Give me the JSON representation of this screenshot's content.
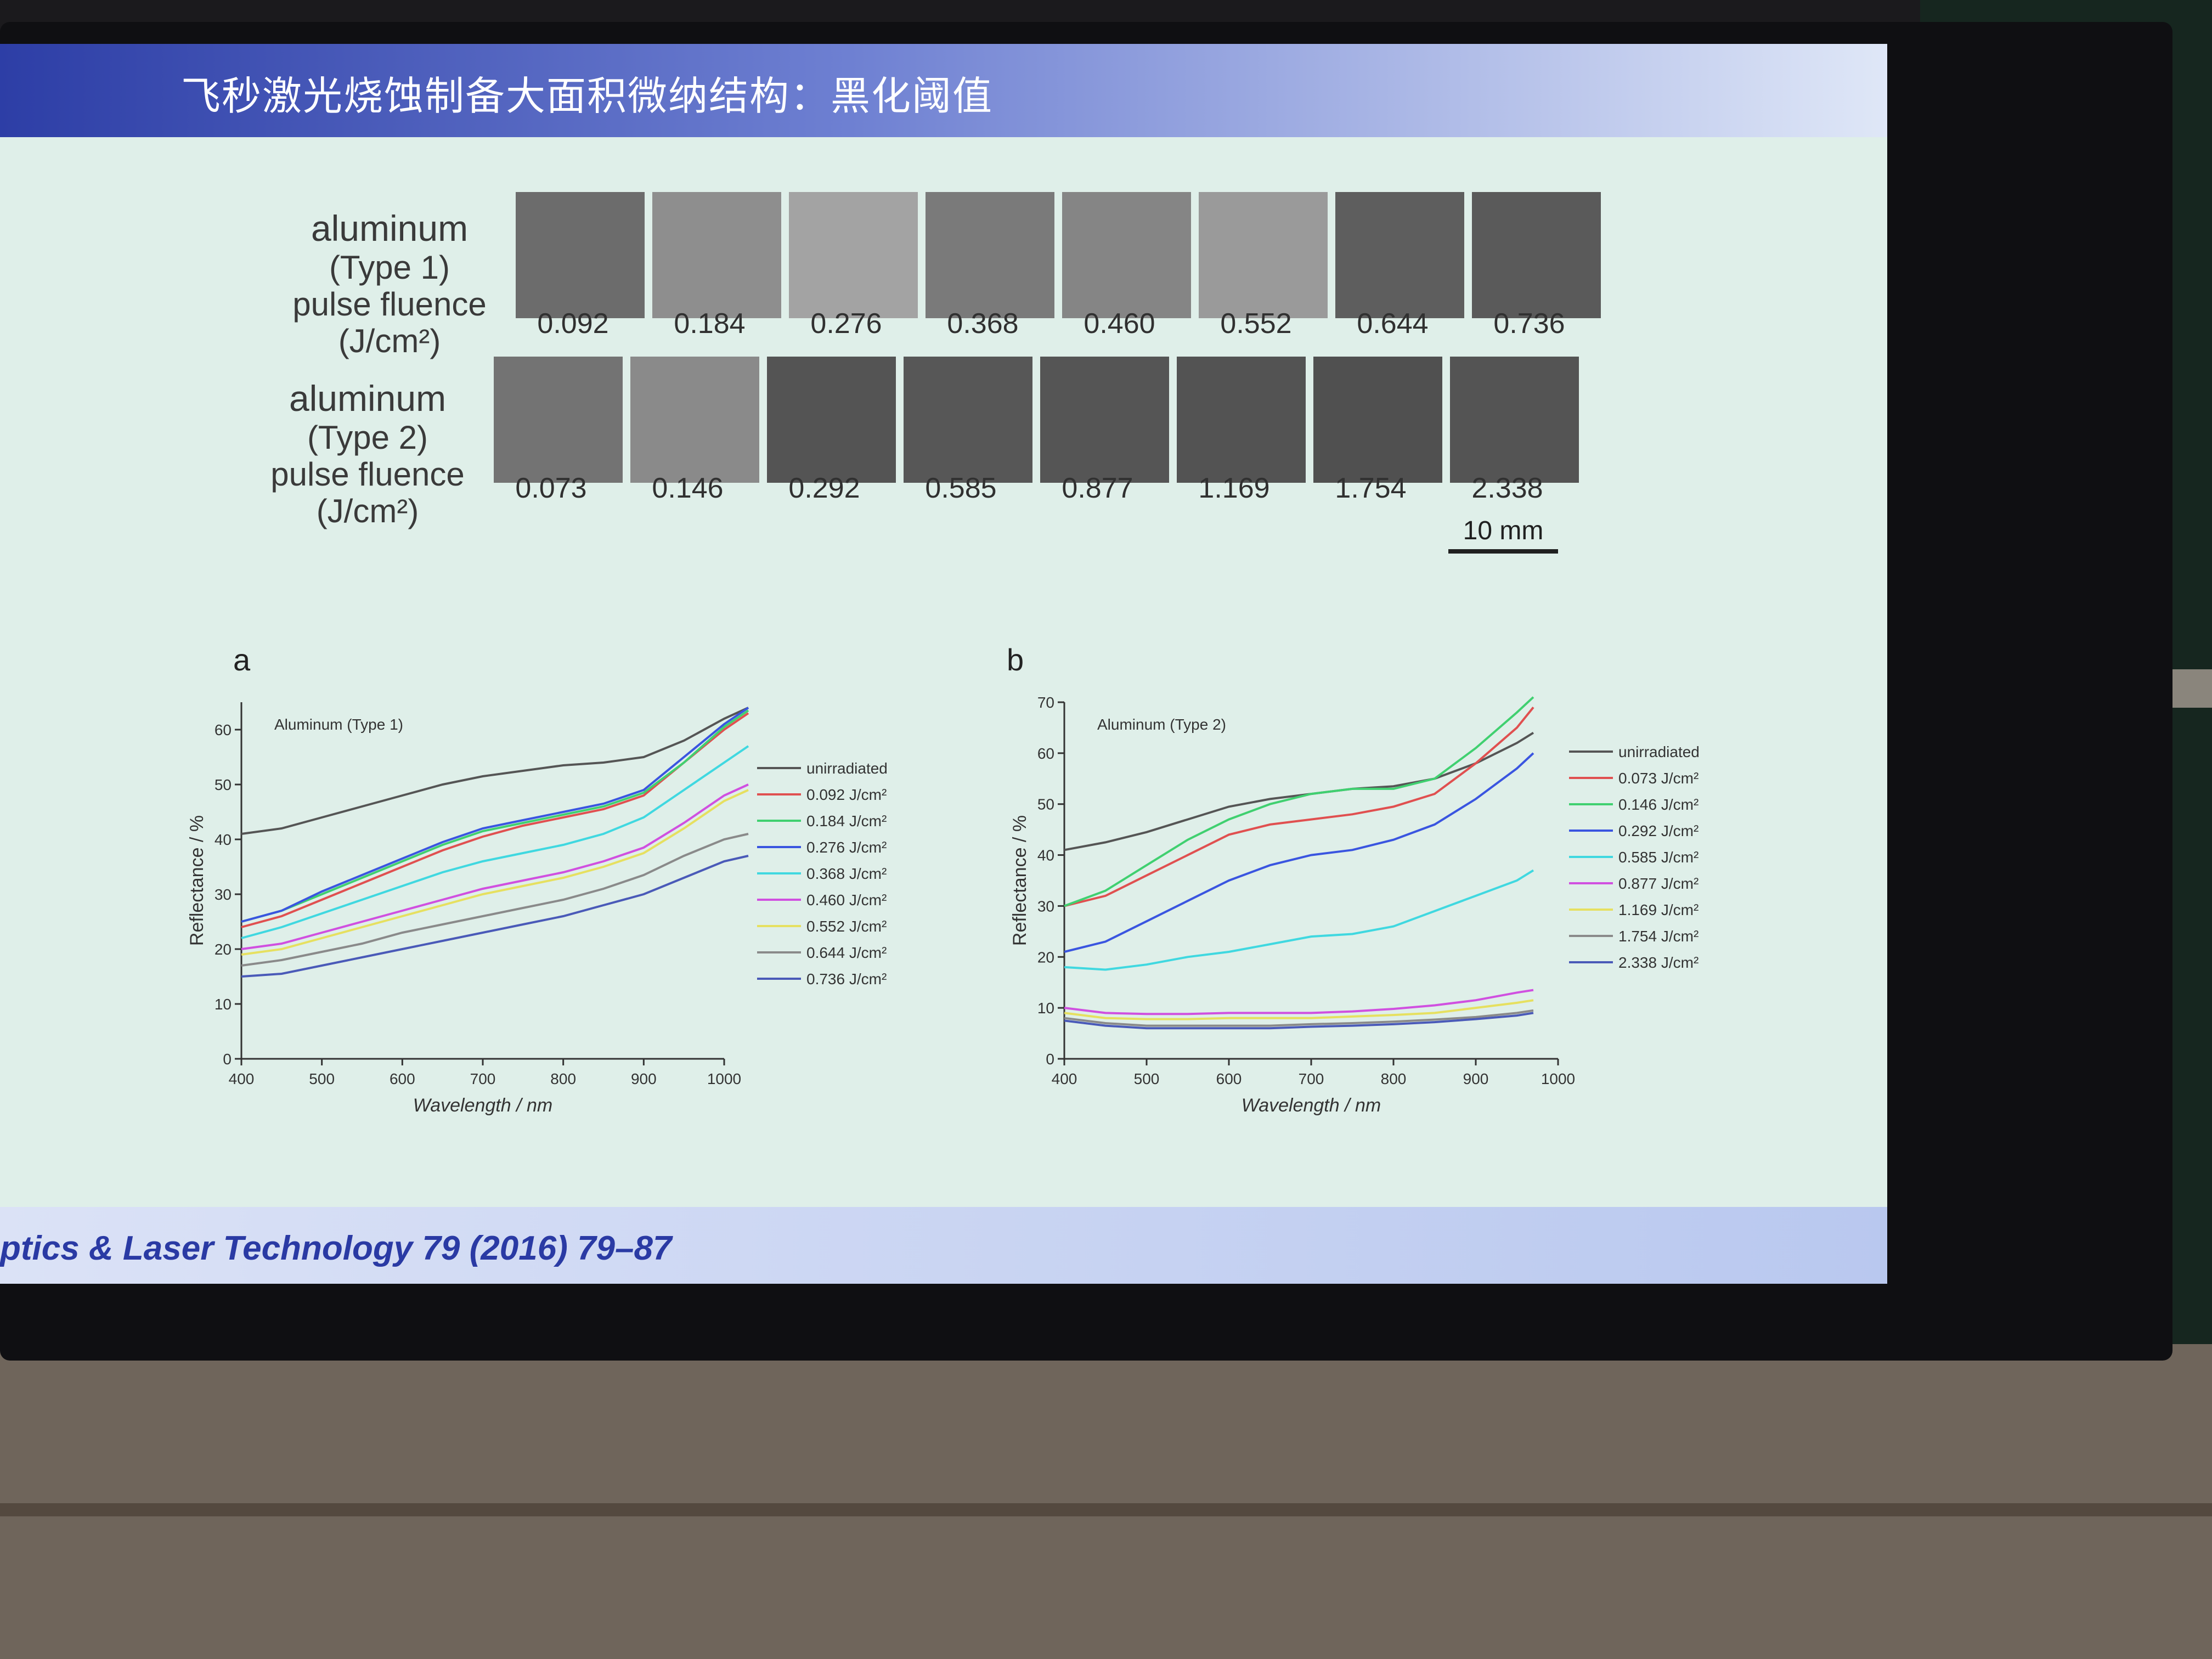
{
  "slide": {
    "title": "飞秒激光烧蚀制备大面积微纳结构：黑化阈值",
    "citation": "ptics & Laser Technology 79 (2016) 79–87",
    "scale_bar": "10 mm"
  },
  "samples": {
    "row1": {
      "material": "aluminum",
      "type": "(Type 1)",
      "caption_line1": "pulse  fluence",
      "caption_line2": "(J/cm²)",
      "fluences": [
        "0.092",
        "0.184",
        "0.276",
        "0.368",
        "0.460",
        "0.552",
        "0.644",
        "0.736"
      ],
      "tile_colors": [
        "#6c6c6c",
        "#8e8e8e",
        "#a3a3a3",
        "#7a7a7a",
        "#858585",
        "#9a9a9a",
        "#5e5e5e",
        "#5a5a5a"
      ]
    },
    "row2": {
      "material": "aluminum",
      "type": "(Type 2)",
      "caption_line1": "pulse  fluence",
      "caption_line2": "(J/cm²)",
      "fluences": [
        "0.073",
        "0.146",
        "0.292",
        "0.585",
        "0.877",
        "1.169",
        "1.754",
        "2.338"
      ],
      "tile_colors": [
        "#737373",
        "#8a8a8a",
        "#545454",
        "#575757",
        "#555555",
        "#535353",
        "#505050",
        "#545454"
      ]
    }
  },
  "chart_data": [
    {
      "type": "line",
      "panel": "a",
      "title": "Aluminum (Type 1)",
      "xlabel": "Wavelength / nm",
      "ylabel": "Reflectance / %",
      "xlim": [
        400,
        1000
      ],
      "ylim": [
        0,
        65
      ],
      "xticks": [
        400,
        500,
        600,
        700,
        800,
        900,
        1000
      ],
      "yticks": [
        0,
        10,
        20,
        30,
        40,
        50,
        60
      ],
      "legend_position": "right",
      "x": [
        400,
        450,
        500,
        550,
        600,
        650,
        700,
        750,
        800,
        850,
        900,
        950,
        1000,
        1030
      ],
      "series": [
        {
          "name": "unirradiated",
          "color": "#555555",
          "values": [
            41,
            42,
            44,
            46,
            48,
            50,
            51.5,
            52.5,
            53.5,
            54,
            55,
            58,
            62,
            64
          ]
        },
        {
          "name": "0.092 J/cm²",
          "color": "#e05050",
          "values": [
            24,
            26,
            29,
            32,
            35,
            38,
            40.5,
            42.5,
            44,
            45.5,
            48,
            54,
            60,
            63
          ]
        },
        {
          "name": "0.184 J/cm²",
          "color": "#40d070",
          "values": [
            25,
            27,
            30,
            33,
            36,
            39,
            41.5,
            43,
            44.5,
            46,
            48.5,
            54,
            60.5,
            63.5
          ]
        },
        {
          "name": "0.276 J/cm²",
          "color": "#3a55e0",
          "values": [
            25,
            27,
            30.5,
            33.5,
            36.5,
            39.5,
            42,
            43.5,
            45,
            46.5,
            49,
            55,
            61,
            64
          ]
        },
        {
          "name": "0.368 J/cm²",
          "color": "#40d8e0",
          "values": [
            22,
            24,
            26.5,
            29,
            31.5,
            34,
            36,
            37.5,
            39,
            41,
            44,
            49,
            54,
            57
          ]
        },
        {
          "name": "0.460 J/cm²",
          "color": "#d050e0",
          "values": [
            20,
            21,
            23,
            25,
            27,
            29,
            31,
            32.5,
            34,
            36,
            38.5,
            43,
            48,
            50
          ]
        },
        {
          "name": "0.552 J/cm²",
          "color": "#e6e060",
          "values": [
            19,
            20,
            22,
            24,
            26,
            28,
            30,
            31.5,
            33,
            35,
            37.5,
            42,
            47,
            49
          ]
        },
        {
          "name": "0.644 J/cm²",
          "color": "#8a8a8a",
          "values": [
            17,
            18,
            19.5,
            21,
            23,
            24.5,
            26,
            27.5,
            29,
            31,
            33.5,
            37,
            40,
            41
          ]
        },
        {
          "name": "0.736 J/cm²",
          "color": "#4a5ab8",
          "values": [
            15,
            15.5,
            17,
            18.5,
            20,
            21.5,
            23,
            24.5,
            26,
            28,
            30,
            33,
            36,
            37
          ]
        }
      ]
    },
    {
      "type": "line",
      "panel": "b",
      "title": "Aluminum (Type 2)",
      "xlabel": "Wavelength / nm",
      "ylabel": "Reflectance / %",
      "xlim": [
        400,
        1000
      ],
      "ylim": [
        0,
        70
      ],
      "xticks": [
        400,
        500,
        600,
        700,
        800,
        900,
        1000
      ],
      "yticks": [
        0,
        10,
        20,
        30,
        40,
        50,
        60,
        70
      ],
      "legend_position": "right",
      "x": [
        400,
        450,
        500,
        550,
        600,
        650,
        700,
        750,
        800,
        850,
        900,
        950,
        970
      ],
      "series": [
        {
          "name": "unirradiated",
          "color": "#555555",
          "values": [
            41,
            42.5,
            44.5,
            47,
            49.5,
            51,
            52,
            53,
            53.5,
            55,
            58,
            62,
            64
          ]
        },
        {
          "name": "0.073 J/cm²",
          "color": "#e05050",
          "values": [
            30,
            32,
            36,
            40,
            44,
            46,
            47,
            48,
            49.5,
            52,
            58,
            65,
            69
          ]
        },
        {
          "name": "0.146 J/cm²",
          "color": "#40d070",
          "values": [
            30,
            33,
            38,
            43,
            47,
            50,
            52,
            53,
            53,
            55,
            61,
            68,
            71
          ]
        },
        {
          "name": "0.292 J/cm²",
          "color": "#3a55e0",
          "values": [
            21,
            23,
            27,
            31,
            35,
            38,
            40,
            41,
            43,
            46,
            51,
            57,
            60
          ]
        },
        {
          "name": "0.585 J/cm²",
          "color": "#40d8e0",
          "values": [
            18,
            17.5,
            18.5,
            20,
            21,
            22.5,
            24,
            24.5,
            26,
            29,
            32,
            35,
            37
          ]
        },
        {
          "name": "0.877 J/cm²",
          "color": "#d050e0",
          "values": [
            10,
            9,
            8.8,
            8.8,
            9,
            9,
            9,
            9.3,
            9.8,
            10.5,
            11.5,
            13,
            13.5
          ]
        },
        {
          "name": "1.169 J/cm²",
          "color": "#e6e060",
          "values": [
            9,
            8,
            7.8,
            7.8,
            8,
            8,
            8,
            8.3,
            8.6,
            9,
            10,
            11,
            11.5
          ]
        },
        {
          "name": "1.754 J/cm²",
          "color": "#8a8a8a",
          "values": [
            8,
            7,
            6.5,
            6.5,
            6.5,
            6.5,
            6.8,
            7,
            7.3,
            7.7,
            8.2,
            9,
            9.5
          ]
        },
        {
          "name": "2.338 J/cm²",
          "color": "#4a5ab8",
          "values": [
            7.5,
            6.5,
            6,
            6,
            6,
            6,
            6.3,
            6.5,
            6.8,
            7.2,
            7.8,
            8.5,
            9
          ]
        }
      ]
    }
  ]
}
